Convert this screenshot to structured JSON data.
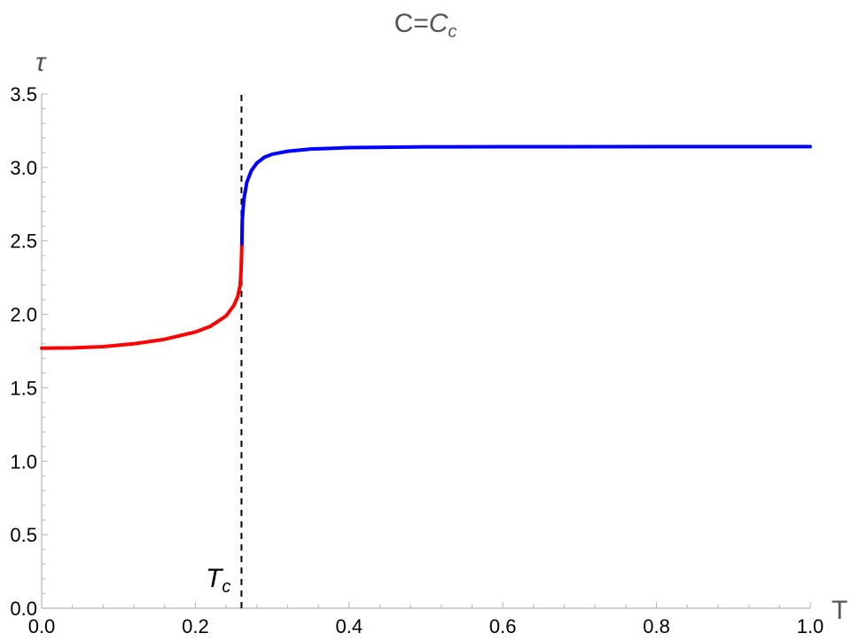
{
  "chart_data": {
    "type": "line",
    "title": {
      "base": "C=",
      "italic": "C",
      "sub": "c"
    },
    "xlabel": "T",
    "ylabel": "τ",
    "xlim": [
      0,
      1
    ],
    "ylim": [
      0,
      3.5
    ],
    "x_ticks": [
      0,
      0.2,
      0.4,
      0.6,
      0.8,
      1.0
    ],
    "x_tick_labels": [
      "0.0",
      "0.2",
      "0.4",
      "0.6",
      "0.8",
      "1.0"
    ],
    "y_ticks": [
      0,
      0.5,
      1.0,
      1.5,
      2.0,
      2.5,
      3.0,
      3.5
    ],
    "y_tick_labels": [
      "0.0",
      "0.5",
      "1.0",
      "1.5",
      "2.0",
      "2.5",
      "3.0",
      "3.5"
    ],
    "grid": false,
    "series": [
      {
        "color": "#ff0000",
        "x": [
          0.0,
          0.04,
          0.08,
          0.12,
          0.16,
          0.2,
          0.22,
          0.24,
          0.25,
          0.255,
          0.258,
          0.2595,
          0.2605
        ],
        "y": [
          1.77,
          1.772,
          1.78,
          1.8,
          1.83,
          1.88,
          1.92,
          1.99,
          2.06,
          2.12,
          2.19,
          2.3,
          2.48
        ]
      },
      {
        "color": "#0000ff",
        "x": [
          0.2605,
          0.261,
          0.263,
          0.267,
          0.273,
          0.28,
          0.29,
          0.3,
          0.32,
          0.35,
          0.4,
          0.5,
          0.6,
          0.8,
          1.0
        ],
        "y": [
          2.48,
          2.64,
          2.78,
          2.9,
          2.98,
          3.03,
          3.07,
          3.09,
          3.11,
          3.125,
          3.135,
          3.14,
          3.141,
          3.1415,
          3.1416
        ]
      }
    ],
    "critical_line": {
      "x": 0.26,
      "label_italic": "T",
      "label_sub": "c"
    }
  }
}
